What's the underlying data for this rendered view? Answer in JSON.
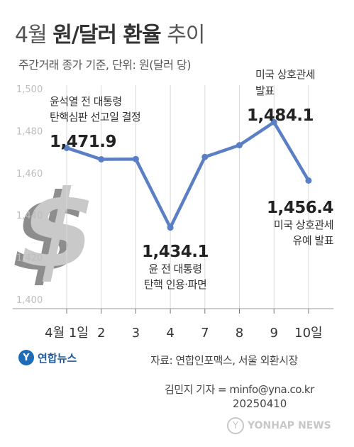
{
  "header": {
    "title_light": "4월",
    "title_bold": "원/달러 환율",
    "title_tail": "추이",
    "subtitle": "주간거래 종가 기준, 단위: 원(달러 당)"
  },
  "footer": {
    "logo_mark": "Y",
    "logo_text": "연합뉴스",
    "source": "자료: 연합인포맥스, 서울 외환시장",
    "byline": "김민지 기자 = minfo@yna.co.kr",
    "date": "20250410",
    "watermark": "YONHAP NEWS"
  },
  "chart_data": {
    "type": "line",
    "categories": [
      "4월 1일",
      "2",
      "3",
      "4",
      "7",
      "8",
      "9",
      "10일"
    ],
    "values": [
      1471.9,
      1466.5,
      1466.6,
      1434.1,
      1467.6,
      1473.2,
      1484.1,
      1456.4
    ],
    "ylim": [
      1400,
      1500
    ],
    "yticks": [
      "1,400",
      "1,420",
      "1,440",
      "1,460",
      "1,480",
      "1,500"
    ],
    "colors": {
      "line": "#5b7fc4",
      "grid": "#d9d9d9",
      "tick_text": "#bdbdbd"
    },
    "icon": "dollar-sign-icon",
    "annotations": [
      {
        "index": 0,
        "value_label": "1,471.9",
        "note": [
          "윤석열 전 대통령",
          "탄핵심판 선고일 결정"
        ]
      },
      {
        "index": 3,
        "value_label": "1,434.1",
        "note": [
          "윤 전 대통령",
          "탄핵 인용·파면"
        ]
      },
      {
        "index": 6,
        "value_label": "1,484.1",
        "note": [
          "미국 상호관세",
          "발표"
        ]
      },
      {
        "index": 7,
        "value_label": "1,456.4",
        "note": [
          "미국 상호관세",
          "유예 발표"
        ]
      }
    ]
  }
}
